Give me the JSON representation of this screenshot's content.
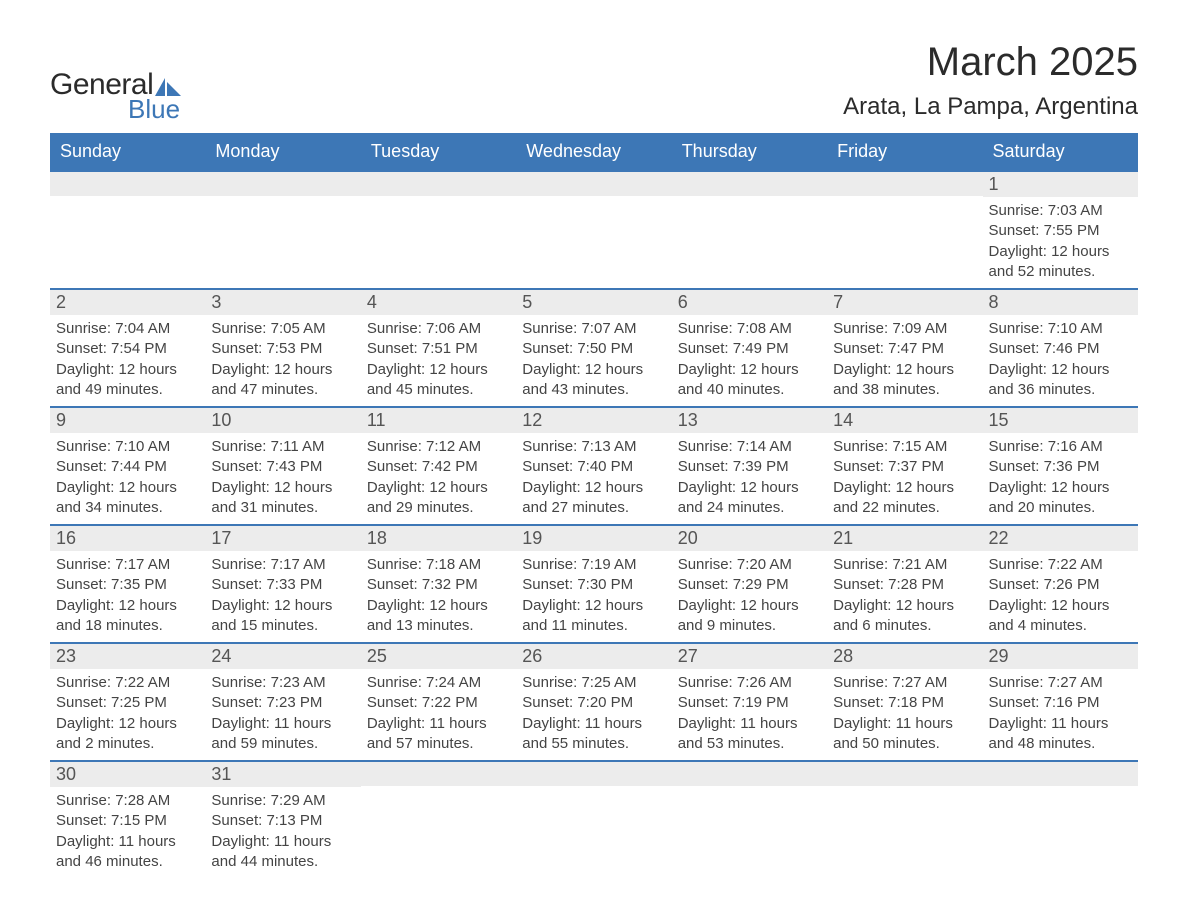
{
  "logo": {
    "general": "General",
    "blue": "Blue"
  },
  "title": "March 2025",
  "subtitle": "Arata, La Pampa, Argentina",
  "labels": {
    "sunrise": "Sunrise:",
    "sunset": "Sunset:",
    "daylight": "Daylight:"
  },
  "colors": {
    "header_bg": "#3d77b6",
    "header_text": "#ffffff",
    "daynum_bg": "#ececec",
    "border": "#3d77b6",
    "body_text": "#444444",
    "title_text": "#2b2b2b",
    "page_bg": "#ffffff"
  },
  "typography": {
    "title_fontsize": 40,
    "subtitle_fontsize": 24,
    "dayhead_fontsize": 18,
    "daynum_fontsize": 18,
    "info_fontsize": 15
  },
  "day_headers": [
    "Sunday",
    "Monday",
    "Tuesday",
    "Wednesday",
    "Thursday",
    "Friday",
    "Saturday"
  ],
  "weeks": [
    [
      {
        "blank": true
      },
      {
        "blank": true
      },
      {
        "blank": true
      },
      {
        "blank": true
      },
      {
        "blank": true
      },
      {
        "blank": true
      },
      {
        "day": 1,
        "sunrise": "7:03 AM",
        "sunset": "7:55 PM",
        "daylight": "12 hours and 52 minutes."
      }
    ],
    [
      {
        "day": 2,
        "sunrise": "7:04 AM",
        "sunset": "7:54 PM",
        "daylight": "12 hours and 49 minutes."
      },
      {
        "day": 3,
        "sunrise": "7:05 AM",
        "sunset": "7:53 PM",
        "daylight": "12 hours and 47 minutes."
      },
      {
        "day": 4,
        "sunrise": "7:06 AM",
        "sunset": "7:51 PM",
        "daylight": "12 hours and 45 minutes."
      },
      {
        "day": 5,
        "sunrise": "7:07 AM",
        "sunset": "7:50 PM",
        "daylight": "12 hours and 43 minutes."
      },
      {
        "day": 6,
        "sunrise": "7:08 AM",
        "sunset": "7:49 PM",
        "daylight": "12 hours and 40 minutes."
      },
      {
        "day": 7,
        "sunrise": "7:09 AM",
        "sunset": "7:47 PM",
        "daylight": "12 hours and 38 minutes."
      },
      {
        "day": 8,
        "sunrise": "7:10 AM",
        "sunset": "7:46 PM",
        "daylight": "12 hours and 36 minutes."
      }
    ],
    [
      {
        "day": 9,
        "sunrise": "7:10 AM",
        "sunset": "7:44 PM",
        "daylight": "12 hours and 34 minutes."
      },
      {
        "day": 10,
        "sunrise": "7:11 AM",
        "sunset": "7:43 PM",
        "daylight": "12 hours and 31 minutes."
      },
      {
        "day": 11,
        "sunrise": "7:12 AM",
        "sunset": "7:42 PM",
        "daylight": "12 hours and 29 minutes."
      },
      {
        "day": 12,
        "sunrise": "7:13 AM",
        "sunset": "7:40 PM",
        "daylight": "12 hours and 27 minutes."
      },
      {
        "day": 13,
        "sunrise": "7:14 AM",
        "sunset": "7:39 PM",
        "daylight": "12 hours and 24 minutes."
      },
      {
        "day": 14,
        "sunrise": "7:15 AM",
        "sunset": "7:37 PM",
        "daylight": "12 hours and 22 minutes."
      },
      {
        "day": 15,
        "sunrise": "7:16 AM",
        "sunset": "7:36 PM",
        "daylight": "12 hours and 20 minutes."
      }
    ],
    [
      {
        "day": 16,
        "sunrise": "7:17 AM",
        "sunset": "7:35 PM",
        "daylight": "12 hours and 18 minutes."
      },
      {
        "day": 17,
        "sunrise": "7:17 AM",
        "sunset": "7:33 PM",
        "daylight": "12 hours and 15 minutes."
      },
      {
        "day": 18,
        "sunrise": "7:18 AM",
        "sunset": "7:32 PM",
        "daylight": "12 hours and 13 minutes."
      },
      {
        "day": 19,
        "sunrise": "7:19 AM",
        "sunset": "7:30 PM",
        "daylight": "12 hours and 11 minutes."
      },
      {
        "day": 20,
        "sunrise": "7:20 AM",
        "sunset": "7:29 PM",
        "daylight": "12 hours and 9 minutes."
      },
      {
        "day": 21,
        "sunrise": "7:21 AM",
        "sunset": "7:28 PM",
        "daylight": "12 hours and 6 minutes."
      },
      {
        "day": 22,
        "sunrise": "7:22 AM",
        "sunset": "7:26 PM",
        "daylight": "12 hours and 4 minutes."
      }
    ],
    [
      {
        "day": 23,
        "sunrise": "7:22 AM",
        "sunset": "7:25 PM",
        "daylight": "12 hours and 2 minutes."
      },
      {
        "day": 24,
        "sunrise": "7:23 AM",
        "sunset": "7:23 PM",
        "daylight": "11 hours and 59 minutes."
      },
      {
        "day": 25,
        "sunrise": "7:24 AM",
        "sunset": "7:22 PM",
        "daylight": "11 hours and 57 minutes."
      },
      {
        "day": 26,
        "sunrise": "7:25 AM",
        "sunset": "7:20 PM",
        "daylight": "11 hours and 55 minutes."
      },
      {
        "day": 27,
        "sunrise": "7:26 AM",
        "sunset": "7:19 PM",
        "daylight": "11 hours and 53 minutes."
      },
      {
        "day": 28,
        "sunrise": "7:27 AM",
        "sunset": "7:18 PM",
        "daylight": "11 hours and 50 minutes."
      },
      {
        "day": 29,
        "sunrise": "7:27 AM",
        "sunset": "7:16 PM",
        "daylight": "11 hours and 48 minutes."
      }
    ],
    [
      {
        "day": 30,
        "sunrise": "7:28 AM",
        "sunset": "7:15 PM",
        "daylight": "11 hours and 46 minutes."
      },
      {
        "day": 31,
        "sunrise": "7:29 AM",
        "sunset": "7:13 PM",
        "daylight": "11 hours and 44 minutes."
      },
      {
        "blank": true
      },
      {
        "blank": true
      },
      {
        "blank": true
      },
      {
        "blank": true
      },
      {
        "blank": true
      }
    ]
  ]
}
